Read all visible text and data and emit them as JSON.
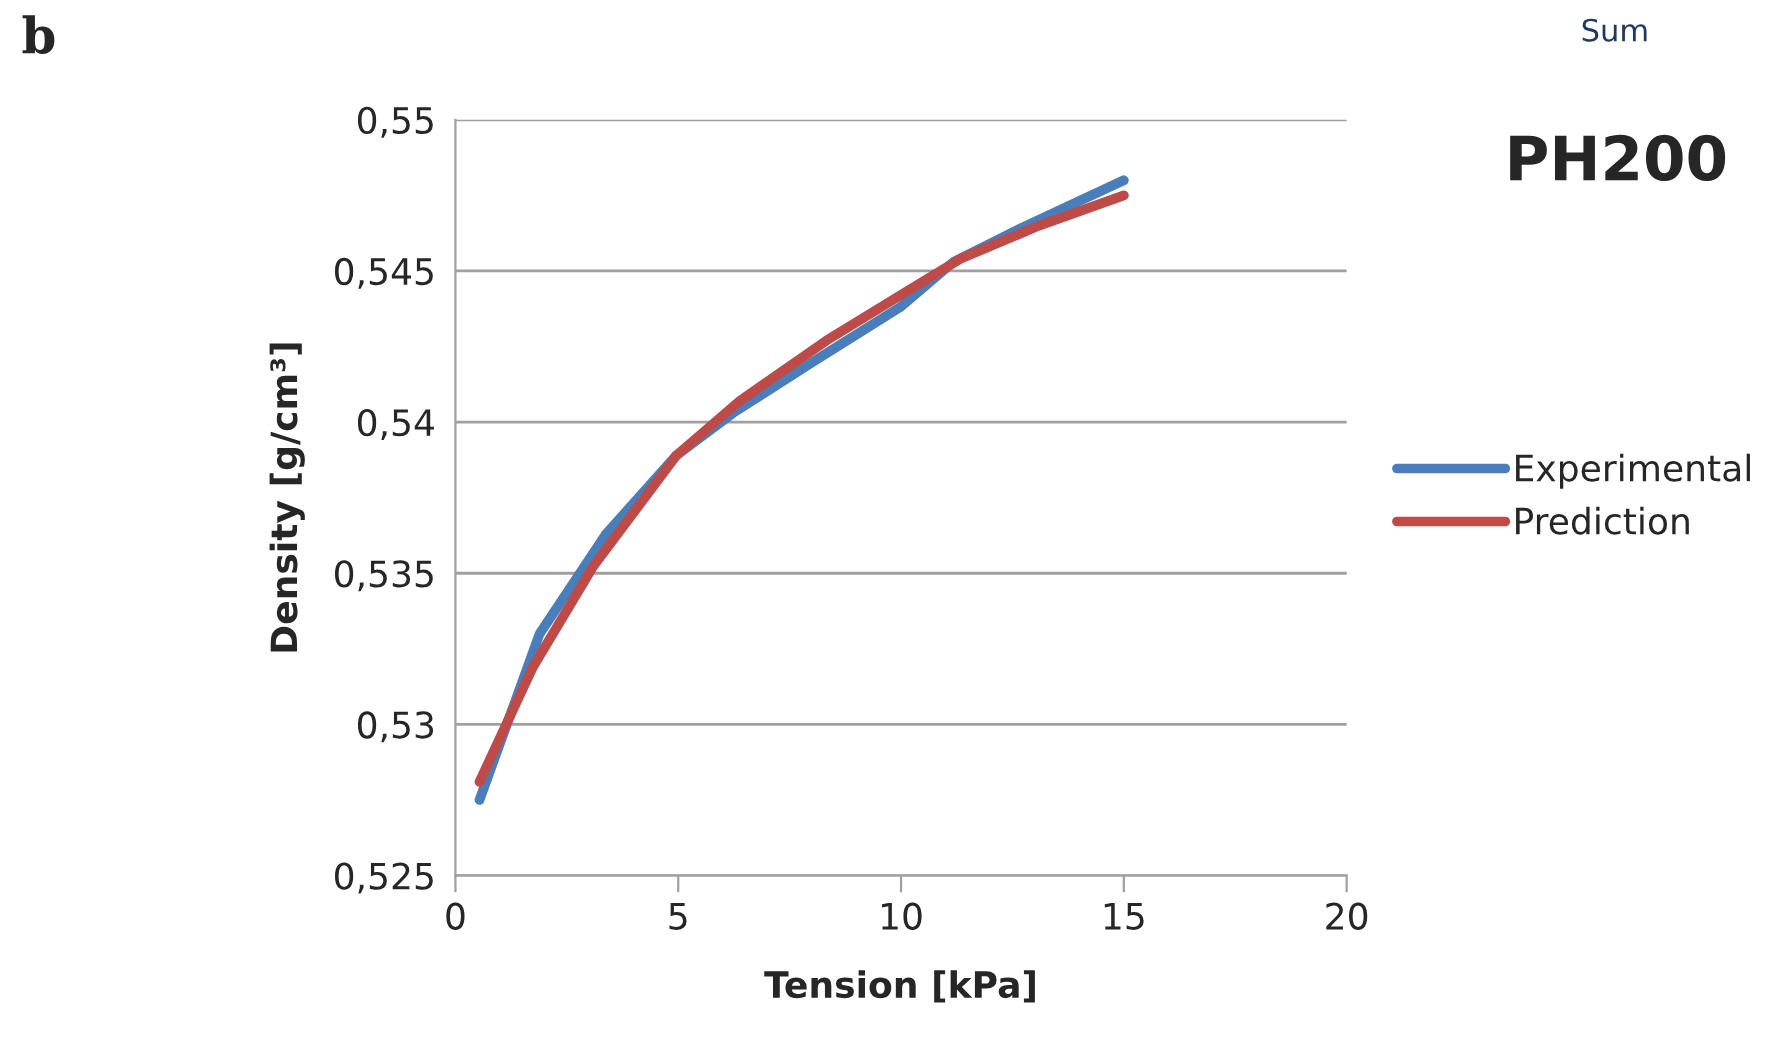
{
  "chart_data": {
    "type": "line",
    "title": "PH200",
    "xlabel": "Tension [kPa]",
    "ylabel": "Density [g/cm³]",
    "annotations": [
      "b",
      "Sum"
    ],
    "series": [
      {
        "name": "Experimental",
        "color": "#4a7ebb",
        "x": [
          0.54,
          1.89,
          3.38,
          4.96,
          6.23,
          8.03,
          9.98,
          11.18,
          12.67,
          15.0
        ],
        "values": [
          0.5275,
          0.533,
          0.5363,
          0.5389,
          0.5403,
          0.542,
          0.5438,
          0.5453,
          0.5464,
          0.548
        ]
      },
      {
        "name": "Prediction",
        "color": "#be4b48",
        "x": [
          0.54,
          1.74,
          3.08,
          4.96,
          6.38,
          8.33,
          10.1,
          11.33,
          13.1,
          15.0
        ],
        "values": [
          0.5281,
          0.5319,
          0.5352,
          0.5389,
          0.5407,
          0.5427,
          0.5443,
          0.5454,
          0.5465,
          0.5475
        ]
      }
    ],
    "xlim": [
      0,
      20
    ],
    "xticks": [
      0,
      5,
      10,
      15,
      20
    ],
    "ylim": [
      0.525,
      0.55
    ],
    "yticks": [
      {
        "value": 0.525,
        "label": "0,525"
      },
      {
        "value": 0.53,
        "label": "0,53"
      },
      {
        "value": 0.535,
        "label": "0,535"
      },
      {
        "value": 0.54,
        "label": "0,54"
      },
      {
        "value": 0.545,
        "label": "0,545"
      },
      {
        "value": 0.55,
        "label": "0,55"
      }
    ],
    "grid": "y",
    "legend": "right",
    "marker": "none",
    "line_style": "solid"
  }
}
